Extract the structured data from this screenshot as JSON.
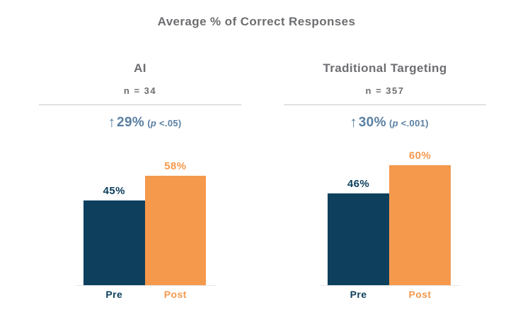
{
  "title": "Average % of Correct Responses",
  "colors": {
    "navy": "#0e405e",
    "orange": "#f5994d",
    "steel": "#5a7fa3",
    "gray": "#6d6e71",
    "divider": "#c8c9cb",
    "baseline": "#e7e7e7"
  },
  "panels": [
    {
      "heading": "AI",
      "n_label": "n = 34",
      "stat": {
        "arrow": "↑",
        "change": "29%",
        "p_open": "(",
        "p_var": "p",
        "p_rest": " <.05)"
      }
    },
    {
      "heading": "Traditional Targeting",
      "n_label": "n = 357",
      "stat": {
        "arrow": "↑",
        "change": "30%",
        "p_open": "(",
        "p_var": "p",
        "p_rest": " <.001)"
      }
    }
  ],
  "chart_data": [
    {
      "type": "bar",
      "group": "AI",
      "categories": [
        "Pre",
        "Post"
      ],
      "values": [
        45,
        58
      ],
      "value_labels": [
        "45%",
        "58%"
      ],
      "bar_colors": [
        "#0e405e",
        "#f5994d"
      ],
      "ylim": [
        0,
        65
      ],
      "grid": false,
      "legend": "none"
    },
    {
      "type": "bar",
      "group": "Traditional Targeting",
      "categories": [
        "Pre",
        "Post"
      ],
      "values": [
        46,
        60
      ],
      "value_labels": [
        "46%",
        "60%"
      ],
      "bar_colors": [
        "#0e405e",
        "#f5994d"
      ],
      "ylim": [
        0,
        65
      ],
      "grid": false,
      "legend": "none"
    }
  ]
}
